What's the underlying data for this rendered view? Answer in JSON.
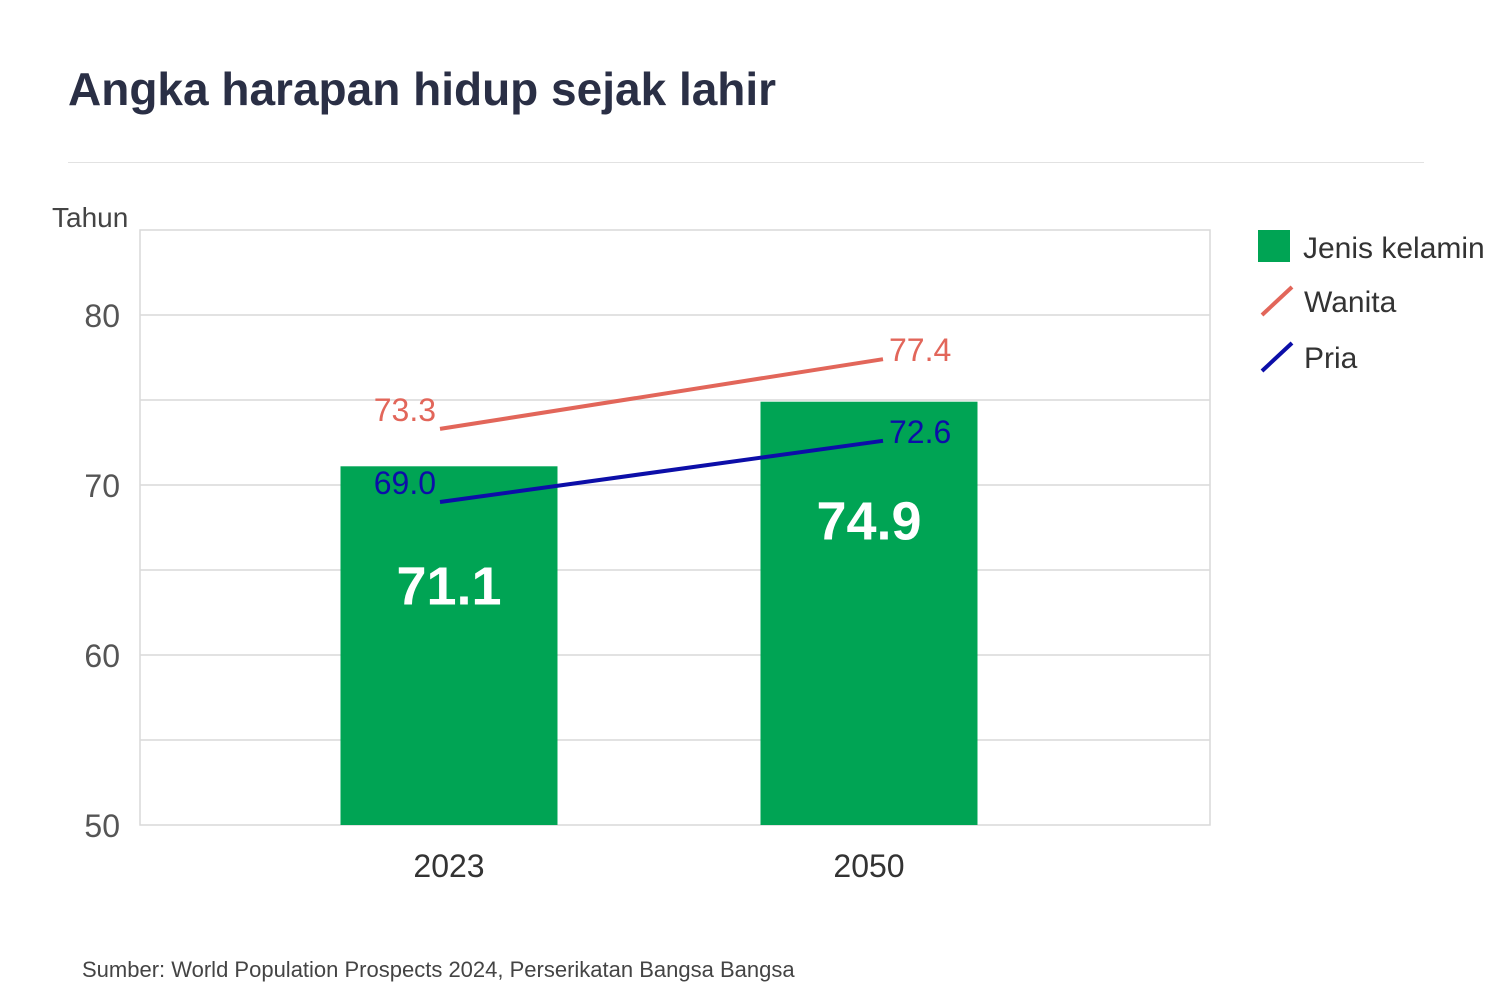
{
  "title": "Angka harapan hidup sejak lahir",
  "source": "Sumber: World Population Prospects 2024, Perserikatan Bangsa Bangsa",
  "colors": {
    "bar": "#00a454",
    "wanita": "#e2665a",
    "pria": "#0c0ea8",
    "grid": "#d9d9d9",
    "tick": "#555555",
    "bar_label": "#ffffff"
  },
  "chart_data": {
    "type": "bar",
    "title": "Angka harapan hidup sejak lahir",
    "ylabel": "Tahun",
    "xlabel": "",
    "categories": [
      "2023",
      "2050"
    ],
    "ylim": [
      50,
      85
    ],
    "yticks": [
      50,
      60,
      70,
      80
    ],
    "grid": true,
    "legend_position": "right",
    "series": [
      {
        "name": "Jenis kelamin",
        "kind": "bar",
        "values": [
          71.1,
          74.9
        ],
        "labels": [
          "71.1",
          "74.9"
        ]
      },
      {
        "name": "Wanita",
        "kind": "line",
        "values": [
          73.3,
          77.4
        ],
        "labels": [
          "73.3",
          "77.4"
        ]
      },
      {
        "name": "Pria",
        "kind": "line",
        "values": [
          69.0,
          72.6
        ],
        "labels": [
          "69.0",
          "72.6"
        ]
      }
    ]
  }
}
